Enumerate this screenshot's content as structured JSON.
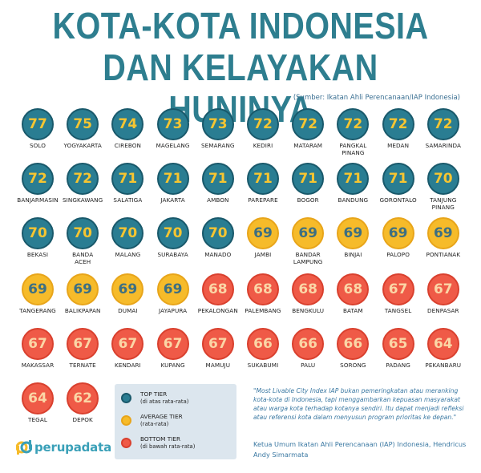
{
  "header": {
    "title_line1": "KOTA-KOTA INDONESIA",
    "title_line2": "DAN KELAYAKAN HUNINYA",
    "source": "(Sumber: Ikatan Ahli Perencanaan/IAP Indonesia)"
  },
  "colors": {
    "top": "#2a7d92",
    "average": "#f6bb2a",
    "bottom": "#ef5a47",
    "title": "#2e7e8f"
  },
  "cities": [
    [
      {
        "name": "SOLO",
        "score": "77",
        "tier": "top"
      },
      {
        "name": "YOGYAKARTA",
        "score": "75",
        "tier": "top"
      },
      {
        "name": "CIREBON",
        "score": "74",
        "tier": "top"
      },
      {
        "name": "MAGELANG",
        "score": "73",
        "tier": "top"
      },
      {
        "name": "SEMARANG",
        "score": "73",
        "tier": "top"
      },
      {
        "name": "KEDIRI",
        "score": "72",
        "tier": "top"
      },
      {
        "name": "MATARAM",
        "score": "72",
        "tier": "top"
      },
      {
        "name": "PANGKAL\nPINANG",
        "score": "72",
        "tier": "top"
      },
      {
        "name": "MEDAN",
        "score": "72",
        "tier": "top"
      },
      {
        "name": "SAMARINDA",
        "score": "72",
        "tier": "top"
      }
    ],
    [
      {
        "name": "BANJARMASIN",
        "score": "72",
        "tier": "top"
      },
      {
        "name": "SINGKAWANG",
        "score": "72",
        "tier": "top"
      },
      {
        "name": "SALATIGA",
        "score": "71",
        "tier": "top"
      },
      {
        "name": "JAKARTA",
        "score": "71",
        "tier": "top"
      },
      {
        "name": "AMBON",
        "score": "71",
        "tier": "top"
      },
      {
        "name": "PAREPARE",
        "score": "71",
        "tier": "top"
      },
      {
        "name": "BOGOR",
        "score": "71",
        "tier": "top"
      },
      {
        "name": "BANDUNG",
        "score": "71",
        "tier": "top"
      },
      {
        "name": "GORONTALO",
        "score": "71",
        "tier": "top"
      },
      {
        "name": "TANJUNG\nPINANG",
        "score": "70",
        "tier": "top"
      }
    ],
    [
      {
        "name": "BEKASI",
        "score": "70",
        "tier": "top"
      },
      {
        "name": "BANDA\nACEH",
        "score": "70",
        "tier": "top"
      },
      {
        "name": "MALANG",
        "score": "70",
        "tier": "top"
      },
      {
        "name": "SURABAYA",
        "score": "70",
        "tier": "top"
      },
      {
        "name": "MANADO",
        "score": "70",
        "tier": "top"
      },
      {
        "name": "JAMBI",
        "score": "69",
        "tier": "avg"
      },
      {
        "name": "BANDAR\nLAMPUNG",
        "score": "69",
        "tier": "avg"
      },
      {
        "name": "BINJAI",
        "score": "69",
        "tier": "avg"
      },
      {
        "name": "PALOPO",
        "score": "69",
        "tier": "avg"
      },
      {
        "name": "PONTIANAK",
        "score": "69",
        "tier": "avg"
      }
    ],
    [
      {
        "name": "TANGERANG",
        "score": "69",
        "tier": "avg"
      },
      {
        "name": "BALIKPAPAN",
        "score": "69",
        "tier": "avg"
      },
      {
        "name": "DUMAI",
        "score": "69",
        "tier": "avg"
      },
      {
        "name": "JAYAPURA",
        "score": "69",
        "tier": "avg"
      },
      {
        "name": "PEKALONGAN",
        "score": "68",
        "tier": "bot"
      },
      {
        "name": "PALEMBANG",
        "score": "68",
        "tier": "bot"
      },
      {
        "name": "BENGKULU",
        "score": "68",
        "tier": "bot"
      },
      {
        "name": "BATAM",
        "score": "68",
        "tier": "bot"
      },
      {
        "name": "TANGSEL",
        "score": "67",
        "tier": "bot"
      },
      {
        "name": "DENPASAR",
        "score": "67",
        "tier": "bot"
      }
    ],
    [
      {
        "name": "MAKASSAR",
        "score": "67",
        "tier": "bot"
      },
      {
        "name": "TERNATE",
        "score": "67",
        "tier": "bot"
      },
      {
        "name": "KENDARI",
        "score": "67",
        "tier": "bot"
      },
      {
        "name": "KUPANG",
        "score": "67",
        "tier": "bot"
      },
      {
        "name": "MAMUJU",
        "score": "67",
        "tier": "bot"
      },
      {
        "name": "SUKABUMI",
        "score": "66",
        "tier": "bot"
      },
      {
        "name": "PALU",
        "score": "66",
        "tier": "bot"
      },
      {
        "name": "SORONG",
        "score": "66",
        "tier": "bot"
      },
      {
        "name": "PADANG",
        "score": "65",
        "tier": "bot"
      },
      {
        "name": "PEKANBARU",
        "score": "64",
        "tier": "bot"
      }
    ],
    [
      {
        "name": "TEGAL",
        "score": "64",
        "tier": "bot"
      },
      {
        "name": "DEPOK",
        "score": "62",
        "tier": "bot"
      }
    ]
  ],
  "legend": {
    "top_label": "TOP TIER",
    "top_sub": "(di atas rata-rata)",
    "avg_label": "AVERAGE TIER",
    "avg_sub": "(rata-rata)",
    "bot_label": "BOTTOM TIER",
    "bot_sub": "(di bawah rata-rata)"
  },
  "quote": "\"Most Livable City Index IAP  bukan pemeringkatan atau meranking kota-kota  di Indonesia, tapi menggambarkan kepuasan masyarakat atau warga kota terhadap kotanya sendiri. Itu dapat menjadi refleksi atau referensi kota dalam menyusun program prioritas ke depan.\"",
  "attribution": "Ketua Umum Ikatan Ahli Perencanaan (IAP) Indonesia, Hendricus Andy Simarmata",
  "logo": {
    "text": "perupadata"
  }
}
